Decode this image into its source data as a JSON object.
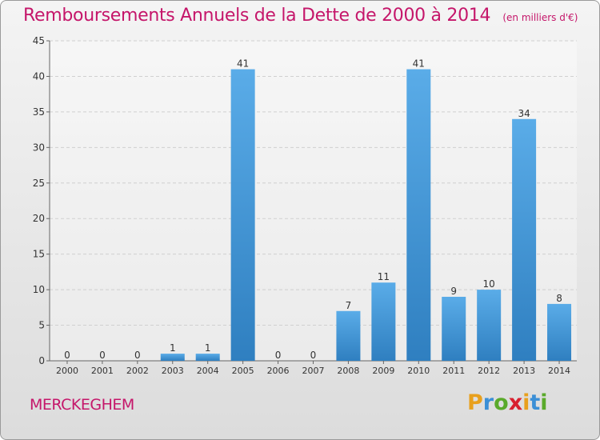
{
  "header": {
    "title": "Remboursements Annuels de la Dette de 2000 à 2014",
    "unit": "(en milliers d'€)"
  },
  "footer": {
    "town": "MERCKEGHEM",
    "logo_letters": [
      "P",
      "r",
      "o",
      "x",
      "i",
      "t",
      "i"
    ],
    "logo_colors": [
      "#e8a01d",
      "#3b8fd6",
      "#5aaa2b",
      "#d8202f",
      "#e8a01d",
      "#3b8fd6",
      "#5aaa2b"
    ]
  },
  "colors": {
    "title": "#c5166a",
    "bar_top": "#5aace8",
    "bar_bottom": "#2f7fc0",
    "grid": "#d0d0d0"
  },
  "chart_data": {
    "type": "bar",
    "title": "Remboursements Annuels de la Dette de 2000 à 2014",
    "categories": [
      "2000",
      "2001",
      "2002",
      "2003",
      "2004",
      "2005",
      "2006",
      "2007",
      "2008",
      "2009",
      "2010",
      "2011",
      "2012",
      "2013",
      "2014"
    ],
    "values": [
      0,
      0,
      0,
      1,
      1,
      41,
      0,
      0,
      7,
      11,
      41,
      9,
      10,
      34,
      8
    ],
    "ylim": [
      0,
      45
    ],
    "yticks": [
      0,
      5,
      10,
      15,
      20,
      25,
      30,
      35,
      40,
      45
    ],
    "grid": true,
    "xlabel": "",
    "ylabel": ""
  }
}
